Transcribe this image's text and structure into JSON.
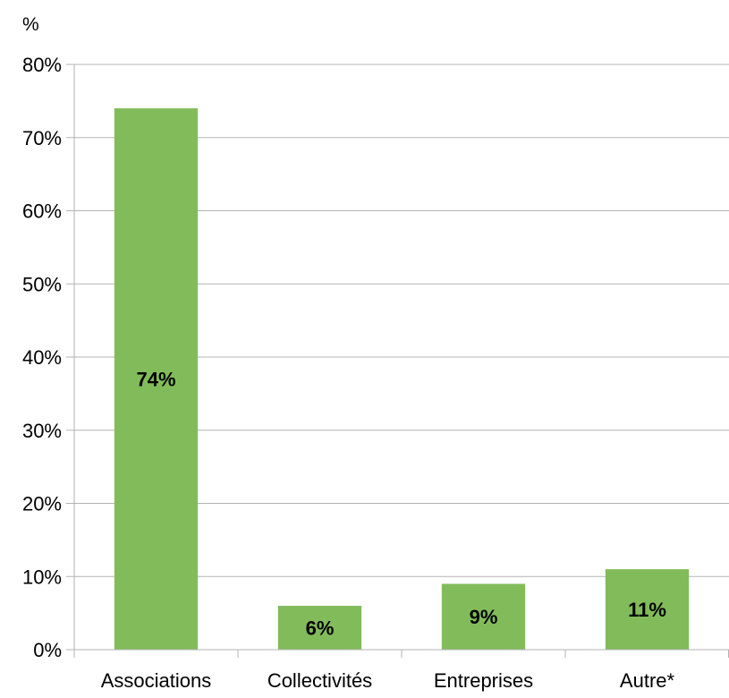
{
  "chart_data": {
    "type": "bar",
    "unit_label": "%",
    "categories": [
      "Associations",
      "Collectivités",
      "Entreprises",
      "Autre*"
    ],
    "values": [
      74,
      6,
      9,
      11
    ],
    "data_labels": [
      "74%",
      "6%",
      "9%",
      "11%"
    ],
    "ylim": [
      0,
      80
    ],
    "y_ticks": [
      0,
      10,
      20,
      30,
      40,
      50,
      60,
      70,
      80
    ],
    "y_tick_labels": [
      "0%",
      "10%",
      "20%",
      "30%",
      "40%",
      "50%",
      "60%",
      "70%",
      "80%"
    ],
    "grid": true,
    "legend": "none",
    "bar_color": "#82bc5a",
    "grid_color": "#b3b3b3"
  }
}
